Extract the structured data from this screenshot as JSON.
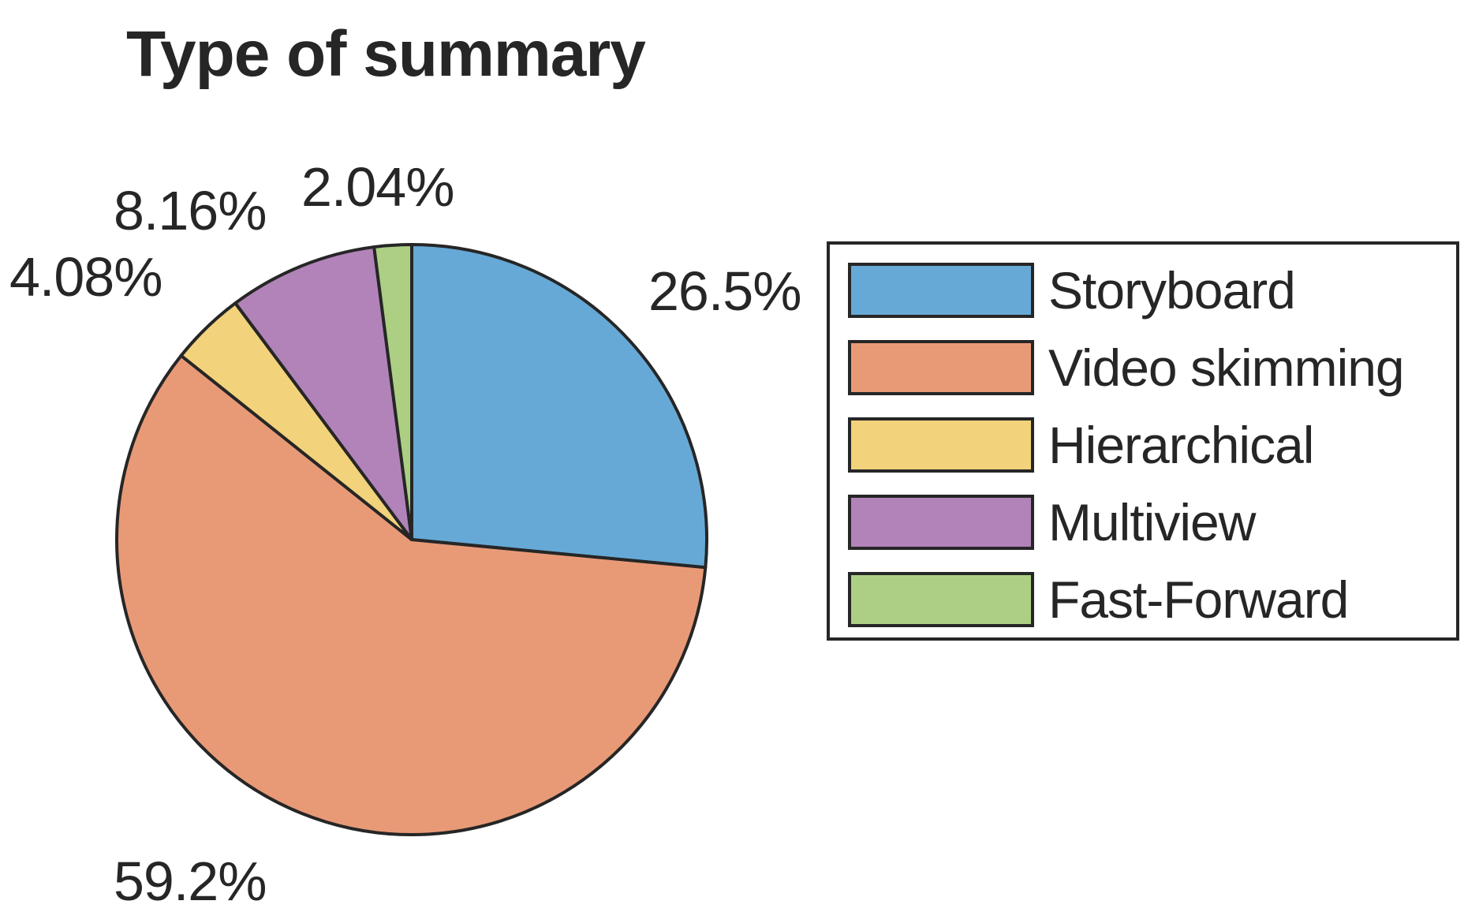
{
  "chart_data": {
    "type": "pie",
    "title": "Type of summary",
    "categories": [
      "Storyboard",
      "Video skimming",
      "Hierarchical",
      "Multiview",
      "Fast-Forward"
    ],
    "values": [
      26.5,
      59.2,
      4.08,
      8.16,
      2.04
    ],
    "labels": [
      "26.5%",
      "59.2%",
      "4.08%",
      "8.16%",
      "2.04%"
    ],
    "colors": [
      "#66a9d6",
      "#e89a77",
      "#f2d27a",
      "#b283b9",
      "#accf84"
    ],
    "start_angle": 90,
    "direction": "clockwise",
    "legend_position": "right"
  },
  "title": "Type of summary",
  "labels": {
    "storyboard": "26.5%",
    "video_skimming": "59.2%",
    "hierarchical": "4.08%",
    "multiview": "8.16%",
    "fast_forward": "2.04%"
  },
  "legend": [
    {
      "label": "Storyboard",
      "color": "#66a9d6"
    },
    {
      "label": "Video skimming",
      "color": "#e89a77"
    },
    {
      "label": "Hierarchical",
      "color": "#f2d27a"
    },
    {
      "label": "Multiview",
      "color": "#b283b9"
    },
    {
      "label": "Fast-Forward",
      "color": "#accf84"
    }
  ]
}
